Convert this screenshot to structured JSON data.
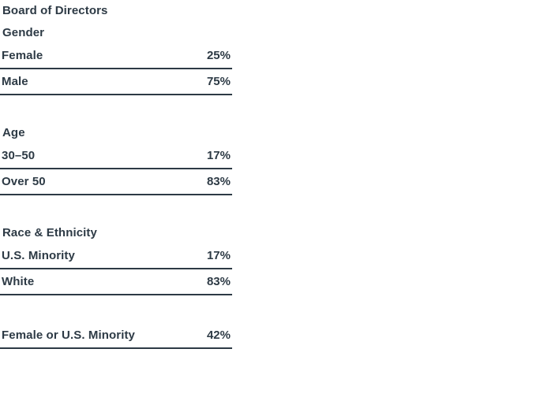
{
  "page": {
    "background_color": "#ffffff",
    "text_color": "#2d3a45",
    "rule_color": "#2d3a45"
  },
  "chart_data": {
    "type": "table",
    "title": "Board of Directors",
    "unit": "percent",
    "sections": [
      {
        "heading": "Gender",
        "rows": [
          {
            "label": "Female",
            "value": "25%",
            "value_numeric": 25
          },
          {
            "label": "Male",
            "value": "75%",
            "value_numeric": 75
          }
        ]
      },
      {
        "heading": "Age",
        "rows": [
          {
            "label": "30–50",
            "value": "17%",
            "value_numeric": 17
          },
          {
            "label": "Over 50",
            "value": "83%",
            "value_numeric": 83
          }
        ]
      },
      {
        "heading": "Race & Ethnicity",
        "rows": [
          {
            "label": "U.S. Minority",
            "value": "17%",
            "value_numeric": 17
          },
          {
            "label": "White",
            "value": "83%",
            "value_numeric": 83
          }
        ]
      },
      {
        "heading": "",
        "rows": [
          {
            "label": "Female or U.S. Minority",
            "value": "42%",
            "value_numeric": 42
          }
        ]
      }
    ]
  }
}
